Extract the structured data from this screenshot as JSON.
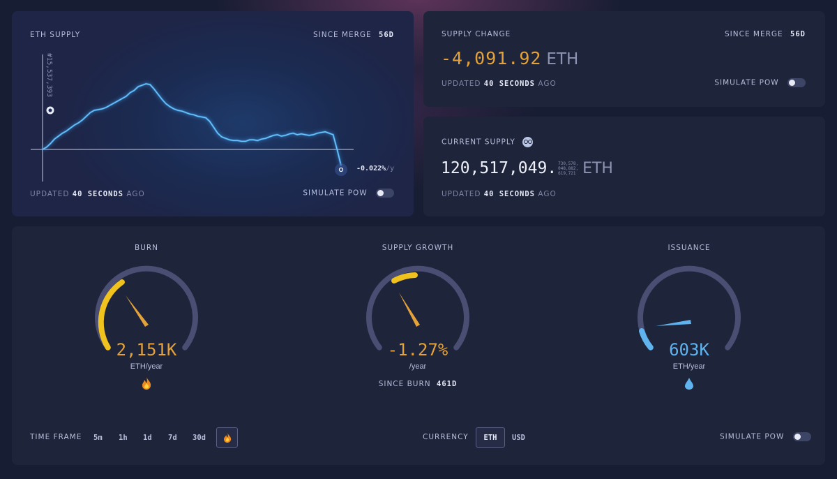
{
  "eth_supply": {
    "title": "ETH SUPPLY",
    "since_merge_label": "SINCE MERGE",
    "since_merge_value": "56d",
    "y_axis_label": "#15,537,393",
    "rate_label": "-0.022%",
    "rate_unit": "/y",
    "updated_prefix": "UPDATED",
    "updated_value": "40 SECONDS",
    "updated_suffix": "AGO",
    "simulate_label": "SIMULATE PoW"
  },
  "supply_change": {
    "title": "SUPPLY CHANGE",
    "since_merge_label": "SINCE MERGE",
    "since_merge_value": "56d",
    "value": "-4,091.92",
    "unit": "ETH",
    "updated_prefix": "UPDATED",
    "updated_value": "40 SECONDS",
    "updated_suffix": "AGO",
    "simulate_label": "SIMULATE PoW"
  },
  "current_supply": {
    "title": "CURRENT SUPPLY",
    "value_main": "120,517,049.",
    "decimals": [
      "730,578,",
      "048,882,",
      "619,721"
    ],
    "unit": "ETH",
    "updated_prefix": "UPDATED",
    "updated_value": "40 SECONDS",
    "updated_suffix": "AGO"
  },
  "gauges": {
    "burn": {
      "title": "BURN",
      "value": "2,151K",
      "unit": "ETH/year",
      "icon": "fire-icon",
      "fraction": 0.42
    },
    "supply_growth": {
      "title": "SUPPLY GROWTH",
      "value": "-1.27%",
      "unit": "/year",
      "since_label": "SINCE BURN",
      "since_value": "461d",
      "fraction": 0.12
    },
    "issuance": {
      "title": "ISSUANCE",
      "value": "603K",
      "unit": "ETH/year",
      "icon": "droplet-icon",
      "fraction": 0.05
    }
  },
  "controls": {
    "time_frame_label": "TIME FRAME",
    "time_frames": [
      "5m",
      "1h",
      "1d",
      "7d",
      "30d"
    ],
    "selected_time_frame_icon": "fire-icon",
    "currency_label": "CURRENCY",
    "currencies": [
      "ETH",
      "USD"
    ],
    "selected_currency": "ETH",
    "simulate_label": "SIMULATE PoW"
  },
  "colors": {
    "accent_orange": "#e3a23a",
    "accent_blue": "#5fb4f0",
    "gauge_track": "#4a4e73",
    "gauge_yellow": "#f0c21e"
  },
  "chart_data": {
    "type": "line",
    "title": "ETH SUPPLY",
    "xlabel": "",
    "ylabel": "",
    "baseline_label": "#15,537,393",
    "end_label": "-0.022%/y",
    "grid": false,
    "series": [
      {
        "values": [
          0,
          3,
          8,
          14,
          18,
          22,
          25,
          29,
          33,
          36,
          40,
          45,
          50,
          53,
          54,
          55,
          57,
          60,
          63,
          66,
          69,
          72,
          77,
          80,
          85,
          87,
          89,
          88,
          82,
          75,
          68,
          62,
          58,
          55,
          53,
          52,
          50,
          48,
          47,
          45,
          44,
          43,
          38,
          30,
          22,
          17,
          15,
          13,
          12,
          12,
          11,
          11,
          13,
          13,
          12,
          14,
          15,
          17,
          19,
          20,
          18,
          19,
          21,
          22,
          20,
          21,
          20,
          19,
          20,
          22,
          23,
          24,
          22,
          20,
          0,
          -22
        ]
      }
    ]
  }
}
